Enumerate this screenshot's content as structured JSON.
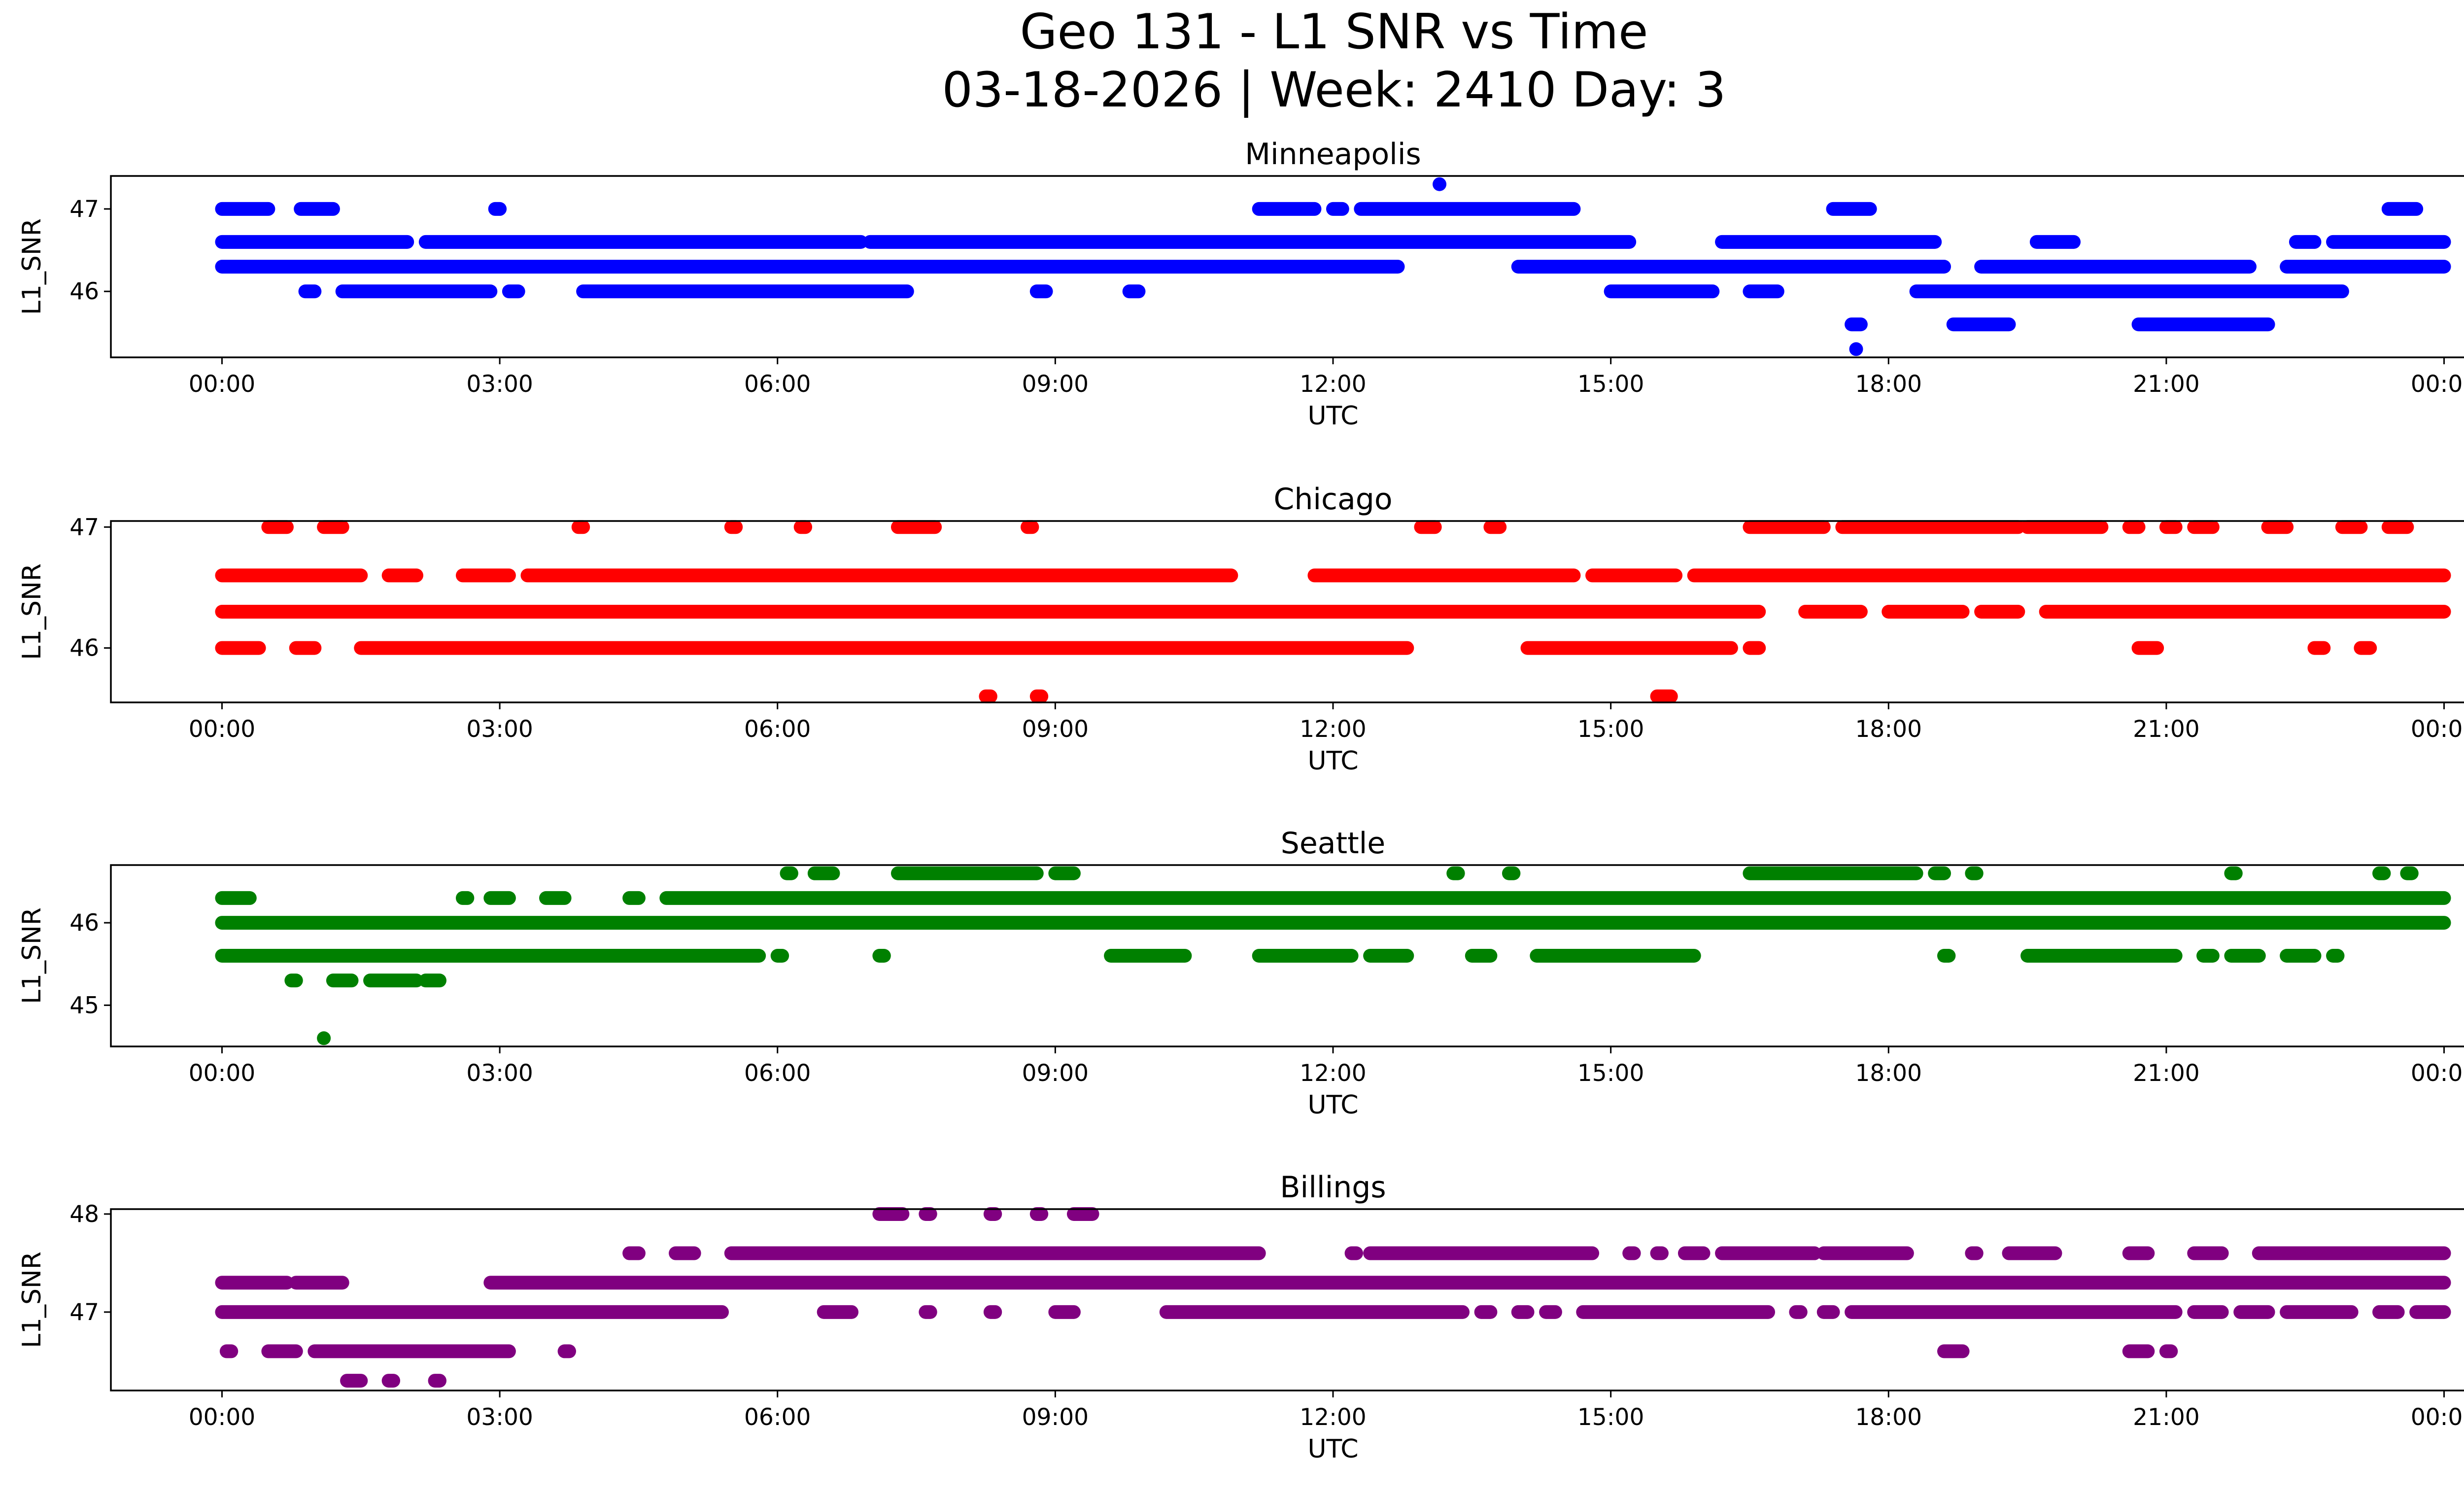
{
  "figure": {
    "title_line1": "Geo 131 - L1 SNR vs Time",
    "title_line2": "03-18-2026 | Week: 2410 Day: 3"
  },
  "chart_data": [
    {
      "type": "scatter",
      "title": "Minneapolis",
      "xlabel": "UTC",
      "ylabel": "L1_SNR",
      "color": "#0000ff",
      "x_ticks": [
        "00:00",
        "03:00",
        "06:00",
        "09:00",
        "12:00",
        "15:00",
        "18:00",
        "21:00",
        "00:00"
      ],
      "y_ticks": [
        {
          "value": 46,
          "label": "46"
        },
        {
          "value": 47,
          "label": "47"
        }
      ],
      "xlim": [
        -1.2,
        25.2
      ],
      "ylim": [
        45.2,
        47.4
      ],
      "levels": [
        {
          "y": 47.0,
          "segments": [
            [
              0.0,
              0.5
            ],
            [
              0.85,
              1.2
            ],
            [
              2.95,
              3.0
            ],
            [
              11.2,
              11.8
            ],
            [
              12.0,
              12.1
            ],
            [
              12.3,
              14.6
            ],
            [
              17.4,
              17.8
            ],
            [
              23.4,
              23.7
            ]
          ]
        },
        {
          "y": 46.6,
          "segments": [
            [
              0.0,
              2.0
            ],
            [
              2.2,
              6.9
            ],
            [
              7.0,
              15.2
            ],
            [
              16.2,
              18.5
            ],
            [
              19.6,
              20.0
            ],
            [
              22.4,
              22.6
            ],
            [
              22.8,
              24.0
            ]
          ]
        },
        {
          "y": 46.3,
          "segments": [
            [
              0.0,
              12.7
            ],
            [
              14.0,
              18.6
            ],
            [
              19.0,
              21.9
            ],
            [
              22.3,
              24.0
            ]
          ]
        },
        {
          "y": 46.0,
          "segments": [
            [
              0.9,
              1.0
            ],
            [
              1.3,
              2.9
            ],
            [
              3.1,
              3.2
            ],
            [
              3.9,
              7.4
            ],
            [
              8.8,
              8.9
            ],
            [
              9.8,
              9.9
            ],
            [
              15.0,
              16.1
            ],
            [
              16.5,
              16.8
            ],
            [
              18.3,
              22.9
            ]
          ]
        },
        {
          "y": 45.6,
          "segments": [
            [
              17.6,
              17.7
            ],
            [
              18.7,
              19.3
            ],
            [
              20.7,
              22.1
            ]
          ]
        }
      ],
      "points": [
        [
          13.15,
          47.3
        ],
        [
          17.65,
          45.3
        ]
      ]
    },
    {
      "type": "scatter",
      "title": "Chicago",
      "xlabel": "UTC",
      "ylabel": "L1_SNR",
      "color": "#ff0000",
      "x_ticks": [
        "00:00",
        "03:00",
        "06:00",
        "09:00",
        "12:00",
        "15:00",
        "18:00",
        "21:00",
        "00:00"
      ],
      "y_ticks": [
        {
          "value": 46,
          "label": "46"
        },
        {
          "value": 47,
          "label": "47"
        }
      ],
      "xlim": [
        -1.2,
        25.2
      ],
      "ylim": [
        45.55,
        47.05
      ],
      "levels": [
        {
          "y": 47.0,
          "segments": [
            [
              0.5,
              0.7
            ],
            [
              1.1,
              1.3
            ],
            [
              3.85,
              3.9
            ],
            [
              5.5,
              5.55
            ],
            [
              6.25,
              6.3
            ],
            [
              7.3,
              7.7
            ],
            [
              8.7,
              8.75
            ],
            [
              12.95,
              13.1
            ],
            [
              13.7,
              13.8
            ],
            [
              16.5,
              17.3
            ],
            [
              17.5,
              19.4
            ],
            [
              19.5,
              20.3
            ],
            [
              20.6,
              20.7
            ],
            [
              21.0,
              21.1
            ],
            [
              21.3,
              21.5
            ],
            [
              22.1,
              22.3
            ],
            [
              22.9,
              23.1
            ],
            [
              23.4,
              23.6
            ]
          ]
        },
        {
          "y": 46.6,
          "segments": [
            [
              0.0,
              1.5
            ],
            [
              1.8,
              2.1
            ],
            [
              2.6,
              3.1
            ],
            [
              3.3,
              10.9
            ],
            [
              11.8,
              14.6
            ],
            [
              14.8,
              15.7
            ],
            [
              15.9,
              24.0
            ]
          ]
        },
        {
          "y": 46.3,
          "segments": [
            [
              0.0,
              16.6
            ],
            [
              17.1,
              17.7
            ],
            [
              18.0,
              18.8
            ],
            [
              19.0,
              19.4
            ],
            [
              19.7,
              24.0
            ]
          ]
        },
        {
          "y": 46.0,
          "segments": [
            [
              0.0,
              0.4
            ],
            [
              0.8,
              1.0
            ],
            [
              1.5,
              12.8
            ],
            [
              14.1,
              16.3
            ],
            [
              16.5,
              16.6
            ],
            [
              20.7,
              20.9
            ],
            [
              22.6,
              22.7
            ],
            [
              23.1,
              23.2
            ]
          ]
        },
        {
          "y": 45.6,
          "segments": [
            [
              8.25,
              8.3
            ],
            [
              8.8,
              8.85
            ],
            [
              15.5,
              15.65
            ]
          ]
        }
      ],
      "points": []
    },
    {
      "type": "scatter",
      "title": "Seattle",
      "xlabel": "UTC",
      "ylabel": "L1_SNR",
      "color": "#008000",
      "x_ticks": [
        "00:00",
        "03:00",
        "06:00",
        "09:00",
        "12:00",
        "15:00",
        "18:00",
        "21:00",
        "00:00"
      ],
      "y_ticks": [
        {
          "value": 45,
          "label": "45"
        },
        {
          "value": 46,
          "label": "46"
        }
      ],
      "xlim": [
        -1.2,
        25.2
      ],
      "ylim": [
        44.5,
        46.7
      ],
      "levels": [
        {
          "y": 46.6,
          "segments": [
            [
              6.1,
              6.15
            ],
            [
              6.4,
              6.6
            ],
            [
              7.3,
              8.8
            ],
            [
              9.0,
              9.2
            ],
            [
              13.3,
              13.35
            ],
            [
              13.9,
              13.95
            ],
            [
              16.5,
              18.3
            ],
            [
              18.5,
              18.6
            ],
            [
              18.9,
              18.95
            ],
            [
              21.7,
              21.75
            ],
            [
              23.3,
              23.35
            ],
            [
              23.6,
              23.65
            ]
          ]
        },
        {
          "y": 46.3,
          "segments": [
            [
              0.0,
              0.3
            ],
            [
              2.6,
              2.65
            ],
            [
              2.9,
              3.1
            ],
            [
              3.5,
              3.7
            ],
            [
              4.4,
              4.5
            ],
            [
              4.8,
              24.0
            ]
          ]
        },
        {
          "y": 46.0,
          "segments": [
            [
              0.0,
              24.0
            ]
          ]
        },
        {
          "y": 45.6,
          "segments": [
            [
              0.0,
              5.8
            ],
            [
              6.0,
              6.05
            ],
            [
              7.1,
              7.15
            ],
            [
              9.6,
              10.4
            ],
            [
              11.2,
              12.2
            ],
            [
              12.4,
              12.8
            ],
            [
              13.5,
              13.7
            ],
            [
              14.2,
              15.9
            ],
            [
              18.6,
              18.65
            ],
            [
              19.5,
              21.1
            ],
            [
              21.4,
              21.5
            ],
            [
              21.7,
              22.0
            ],
            [
              22.3,
              22.6
            ],
            [
              22.8,
              22.85
            ]
          ]
        },
        {
          "y": 45.3,
          "segments": [
            [
              0.75,
              0.8
            ],
            [
              1.2,
              1.4
            ],
            [
              1.6,
              2.1
            ],
            [
              2.2,
              2.35
            ]
          ]
        }
      ],
      "points": [
        [
          1.1,
          44.6
        ]
      ]
    },
    {
      "type": "scatter",
      "title": "Billings",
      "xlabel": "UTC",
      "ylabel": "L1_SNR",
      "color": "#800080",
      "x_ticks": [
        "00:00",
        "03:00",
        "06:00",
        "09:00",
        "12:00",
        "15:00",
        "18:00",
        "21:00",
        "00:00"
      ],
      "y_ticks": [
        {
          "value": 47,
          "label": "47"
        },
        {
          "value": 48,
          "label": "48"
        }
      ],
      "xlim": [
        -1.2,
        25.2
      ],
      "ylim": [
        46.2,
        48.05
      ],
      "levels": [
        {
          "y": 48.0,
          "segments": [
            [
              7.1,
              7.35
            ],
            [
              7.6,
              7.65
            ],
            [
              8.3,
              8.35
            ],
            [
              8.8,
              8.85
            ],
            [
              9.2,
              9.4
            ]
          ]
        },
        {
          "y": 47.6,
          "segments": [
            [
              4.4,
              4.5
            ],
            [
              4.9,
              5.1
            ],
            [
              5.5,
              11.2
            ],
            [
              12.2,
              12.25
            ],
            [
              12.4,
              14.8
            ],
            [
              15.2,
              15.25
            ],
            [
              15.5,
              15.55
            ],
            [
              15.8,
              16.0
            ],
            [
              16.2,
              17.2
            ],
            [
              17.3,
              18.2
            ],
            [
              18.9,
              18.95
            ],
            [
              19.3,
              19.8
            ],
            [
              20.6,
              20.8
            ],
            [
              21.3,
              21.6
            ],
            [
              22.0,
              24.0
            ]
          ]
        },
        {
          "y": 47.3,
          "segments": [
            [
              0.0,
              0.7
            ],
            [
              0.8,
              1.3
            ],
            [
              2.9,
              24.0
            ]
          ]
        },
        {
          "y": 47.0,
          "segments": [
            [
              0.0,
              5.4
            ],
            [
              6.5,
              6.8
            ],
            [
              7.6,
              7.65
            ],
            [
              8.3,
              8.35
            ],
            [
              9.0,
              9.2
            ],
            [
              10.2,
              13.4
            ],
            [
              13.6,
              13.7
            ],
            [
              14.0,
              14.1
            ],
            [
              14.3,
              14.4
            ],
            [
              14.7,
              16.7
            ],
            [
              17.0,
              17.05
            ],
            [
              17.3,
              17.4
            ],
            [
              17.6,
              21.1
            ],
            [
              21.3,
              21.6
            ],
            [
              21.8,
              22.1
            ],
            [
              22.3,
              23.0
            ],
            [
              23.3,
              23.5
            ],
            [
              23.7,
              24.0
            ]
          ]
        },
        {
          "y": 46.6,
          "segments": [
            [
              0.05,
              0.1
            ],
            [
              0.5,
              0.8
            ],
            [
              1.0,
              3.1
            ],
            [
              3.7,
              3.75
            ],
            [
              18.6,
              18.8
            ],
            [
              20.6,
              20.8
            ],
            [
              21.0,
              21.05
            ]
          ]
        },
        {
          "y": 46.3,
          "segments": [
            [
              1.35,
              1.5
            ],
            [
              1.8,
              1.85
            ],
            [
              2.3,
              2.35
            ]
          ]
        }
      ],
      "points": []
    }
  ]
}
